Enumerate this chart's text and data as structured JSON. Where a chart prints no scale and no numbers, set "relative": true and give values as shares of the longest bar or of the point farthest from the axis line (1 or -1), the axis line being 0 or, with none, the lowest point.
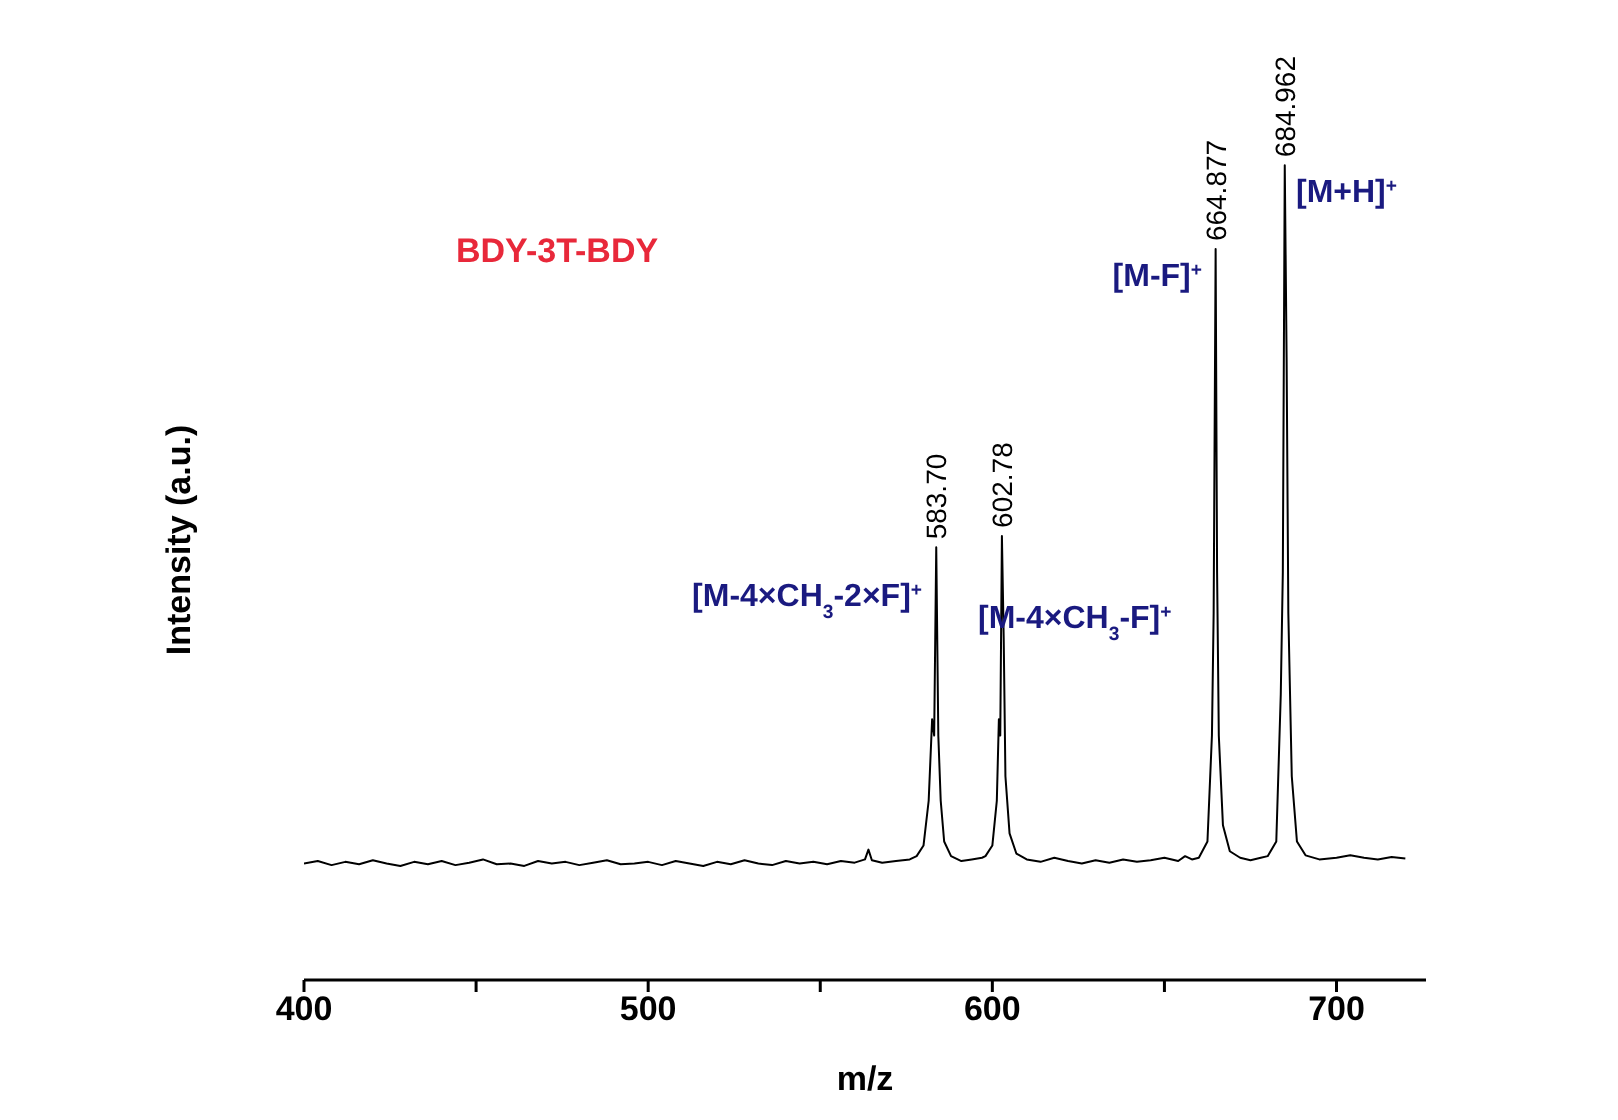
{
  "chart_data": {
    "type": "line",
    "title": "BDY-3T-BDY",
    "xlabel": "m/z",
    "ylabel": "Intensity (a.u.)",
    "relative": true,
    "marker": "none",
    "line_style": "solid",
    "grid": false,
    "xlim": [
      400,
      726
    ],
    "xticks": [
      400,
      {
        "value": 450,
        "label": null
      },
      500,
      {
        "value": 550,
        "label": null
      },
      600,
      {
        "value": 650,
        "label": null
      },
      700
    ],
    "series": [
      {
        "color": "#000000",
        "x": [
          400,
          404,
          408,
          412,
          416,
          420,
          424,
          428,
          432,
          436,
          440,
          444,
          448,
          452,
          456,
          460,
          464,
          468,
          472,
          476,
          480,
          484,
          488,
          492,
          496,
          500,
          504,
          508,
          512,
          516,
          520,
          524,
          528,
          532,
          536,
          540,
          544,
          548,
          552,
          556,
          560,
          563,
          564,
          565,
          568,
          572,
          576,
          578,
          580,
          581.5,
          582.5,
          583.1,
          583.7,
          584.3,
          585,
          586,
          588,
          591,
          594,
          597,
          598,
          600,
          601.3,
          601.9,
          602.3,
          602.78,
          603.3,
          603.8,
          605,
          607,
          610,
          614,
          618,
          622,
          626,
          630,
          634,
          638,
          642,
          646,
          650,
          654,
          656,
          658,
          660,
          662.5,
          663.8,
          664.3,
          664.877,
          665.3,
          665.8,
          667,
          669,
          672,
          675,
          678,
          680,
          682.5,
          683.8,
          684.4,
          684.962,
          685.5,
          686,
          687,
          688.5,
          691,
          695,
          700,
          704,
          708,
          712,
          716,
          720
        ],
        "values": [
          0.143,
          0.146,
          0.141,
          0.145,
          0.142,
          0.147,
          0.143,
          0.14,
          0.145,
          0.142,
          0.146,
          0.141,
          0.144,
          0.148,
          0.142,
          0.143,
          0.14,
          0.146,
          0.143,
          0.145,
          0.141,
          0.144,
          0.147,
          0.142,
          0.143,
          0.145,
          0.141,
          0.146,
          0.143,
          0.14,
          0.145,
          0.142,
          0.147,
          0.143,
          0.141,
          0.146,
          0.143,
          0.145,
          0.142,
          0.146,
          0.144,
          0.148,
          0.16,
          0.147,
          0.144,
          0.146,
          0.148,
          0.152,
          0.165,
          0.22,
          0.32,
          0.3,
          0.531,
          0.3,
          0.22,
          0.17,
          0.152,
          0.146,
          0.148,
          0.15,
          0.152,
          0.165,
          0.22,
          0.32,
          0.3,
          0.545,
          0.42,
          0.25,
          0.18,
          0.155,
          0.148,
          0.145,
          0.15,
          0.146,
          0.143,
          0.147,
          0.144,
          0.148,
          0.145,
          0.147,
          0.15,
          0.146,
          0.152,
          0.148,
          0.15,
          0.17,
          0.3,
          0.45,
          0.897,
          0.5,
          0.3,
          0.19,
          0.158,
          0.15,
          0.147,
          0.15,
          0.152,
          0.17,
          0.35,
          0.5,
          1.0,
          0.764,
          0.45,
          0.25,
          0.17,
          0.153,
          0.148,
          0.15,
          0.153,
          0.15,
          0.148,
          0.151,
          0.149
        ]
      }
    ],
    "annotations": [
      {
        "text": "583.70",
        "x": 583.7,
        "y": 0.531
      },
      {
        "text": "602.78",
        "x": 602.78,
        "y": 0.545
      },
      {
        "text": "664.877",
        "x": 664.877,
        "y": 0.897
      },
      {
        "text": "684.962",
        "x": 684.962,
        "y": 1.0
      },
      "[M-4×CH$_{3}$-2×F]$^{+}$",
      "[M-4×CH$_{3}$-F]$^{+}$",
      "[M-F]$^{+}$",
      "[M+H]$^{+}$"
    ]
  }
}
